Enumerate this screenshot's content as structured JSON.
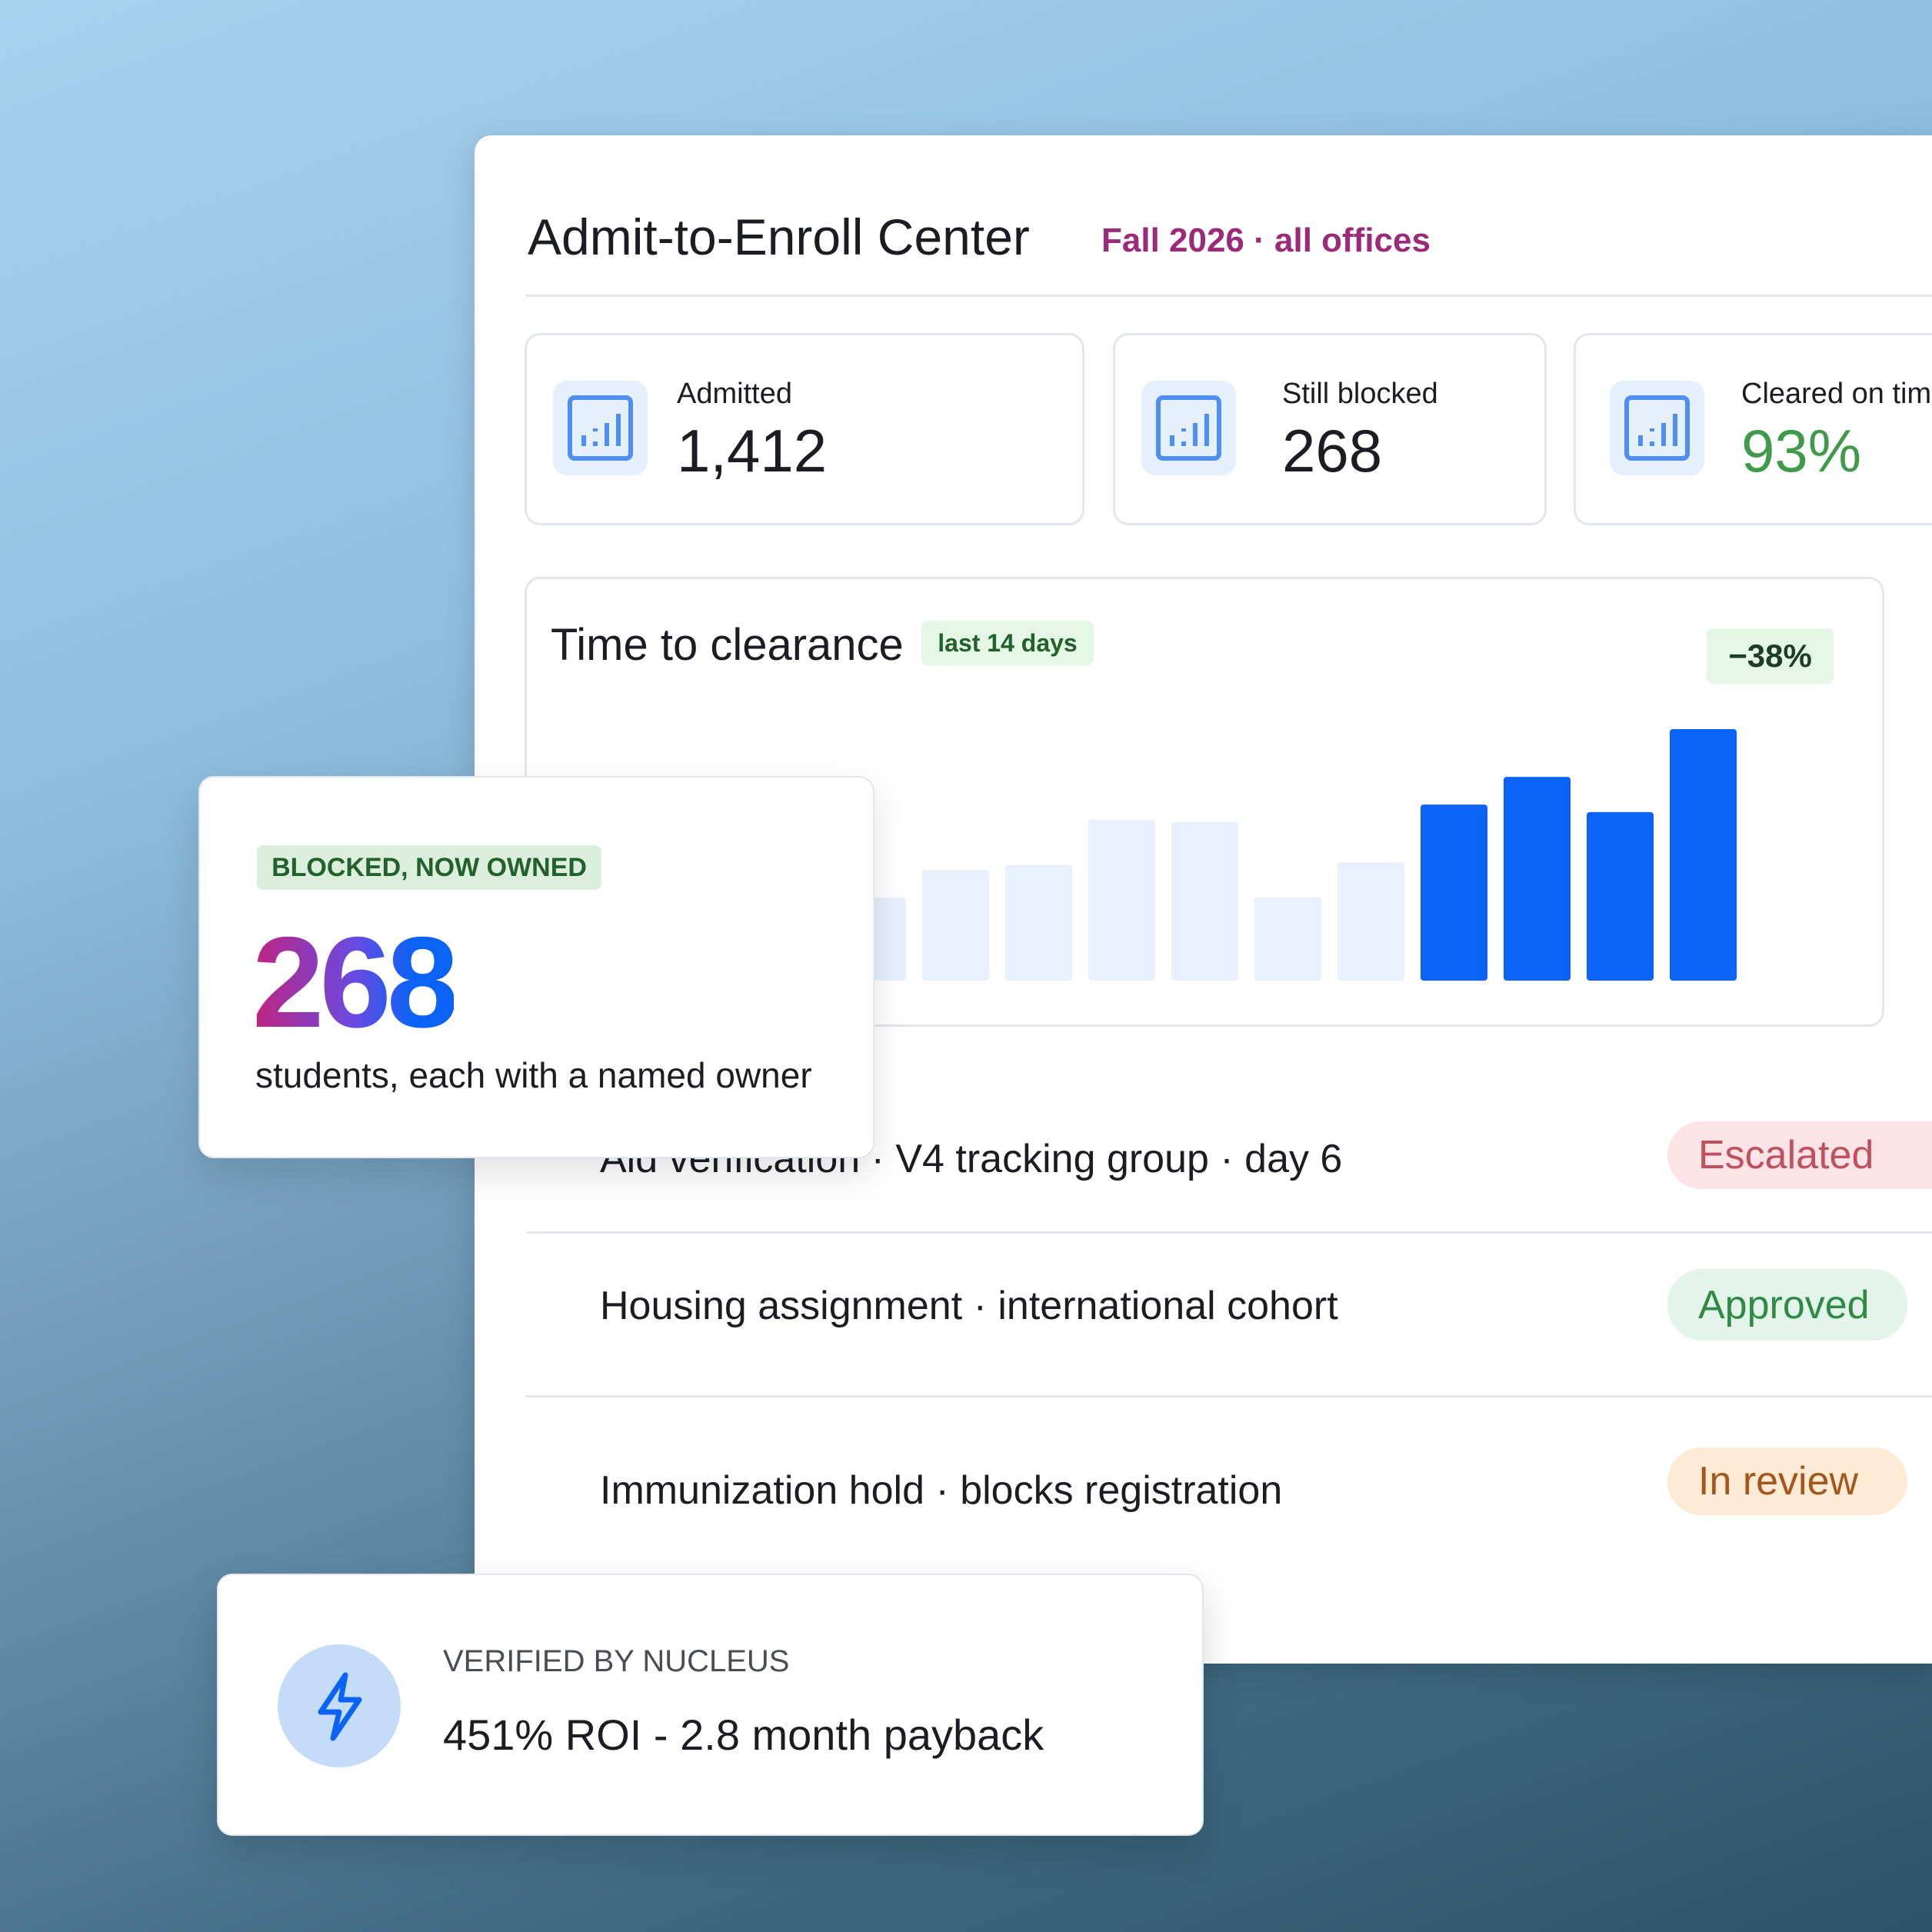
{
  "header": {
    "title": "Admit-to-Enroll Center",
    "subtitle": "Fall 2026 · all offices"
  },
  "stats": [
    {
      "label": "Admitted",
      "value": "1,412"
    },
    {
      "label": "Still blocked",
      "value": "268"
    },
    {
      "label": "Cleared on time",
      "value": "93%"
    }
  ],
  "chart_data": {
    "type": "bar",
    "title": "Time to clearance",
    "period": "last 14 days",
    "change": "−38%",
    "values": [
      33,
      44,
      46,
      64,
      63,
      33,
      47,
      70,
      81,
      67,
      100
    ],
    "colors": [
      "#e8f0fd",
      "#e8f0fd",
      "#e8f0fd",
      "#e8f0fd",
      "#e8f0fd",
      "#e8f0fd",
      "#e8f0fd",
      "#0b63f6",
      "#0b63f6",
      "#0b63f6",
      "#0b63f6"
    ],
    "ylim": [
      0,
      100
    ]
  },
  "callout": {
    "badge": "BLOCKED, NOW OWNED",
    "value": "268",
    "caption": "students, each with a named owner"
  },
  "rows": [
    {
      "text": "Aid verification · V4 tracking group · day 6",
      "status": "Escalated"
    },
    {
      "text": "Housing assignment · international cohort",
      "status": "Approved"
    },
    {
      "text": "Immunization hold · blocks registration",
      "status": "In review"
    }
  ],
  "verified": {
    "label": "VERIFIED BY NUCLEUS",
    "text": "451% ROI - 2.8 month payback"
  }
}
